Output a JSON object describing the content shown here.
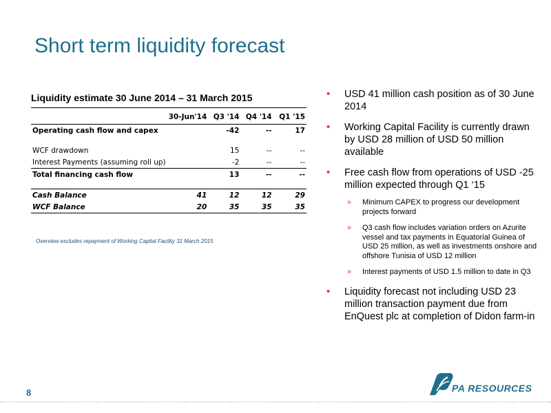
{
  "slide": {
    "title": "Short term liquidity forecast",
    "page_number": "8"
  },
  "table": {
    "title": "Liquidity estimate 30 June 2014 – 31 March 2015",
    "headers": [
      "",
      "30-Jun'14",
      "Q3 '14",
      "Q4 '14",
      "Q1 '15"
    ],
    "rows": {
      "operating": [
        "Operating cash flow and capex",
        "",
        "-42",
        "--",
        "17"
      ],
      "wcf_drawdown": [
        "WCF drawdown",
        "",
        "15",
        "--",
        "--"
      ],
      "interest": [
        "Interest Payments (assuming roll up)",
        "",
        "-2",
        "--",
        "--"
      ],
      "total_financing": [
        "Total financing cash flow",
        "",
        "13",
        "--",
        "--"
      ],
      "cash_balance": [
        "Cash Balance",
        "41",
        "12",
        "12",
        "29"
      ],
      "wcf_balance": [
        "WCF Balance",
        "20",
        "35",
        "35",
        "35"
      ]
    },
    "footnote": "Overview excludes repayment of Working Capital Facility 31 March 2015"
  },
  "bullets": {
    "b1": "USD 41 million cash position as of 30 June 2014",
    "b2": "Working Capital Facility is currently drawn by USD 28 million of USD 50 million available",
    "b3": "Free cash flow from operations of USD -25 million expected through Q1 ‘15",
    "sub1": "Minimum CAPEX to progress our development projects forward",
    "sub2": "Q3 cash flow includes variation orders on Azurite vessel and tax payments in Equatorial Guinea of USD 25 million, as well as investments onshore and offshore Tunisia of USD 12 million",
    "sub3": "Interest payments of USD 1.5 million to date in Q3",
    "b4": "Liquidity forecast not including USD 23 million transaction payment due from EnQuest plc at completion of Didon farm-in",
    "bullet_symbol": "•",
    "sub_symbol": "»"
  },
  "logo": {
    "text": "PA RESOURCES",
    "icon": "pa-resources-logo-icon",
    "color": "#1f6e8c"
  }
}
